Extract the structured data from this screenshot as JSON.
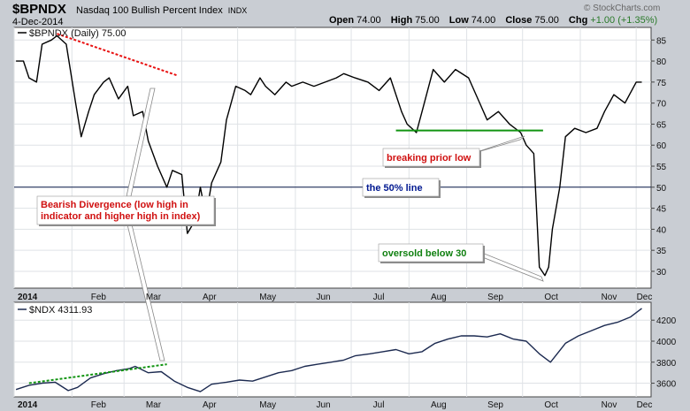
{
  "header": {
    "symbol": "$BPNDX",
    "description": "Nasdaq 100 Bullish Percent Index",
    "exchange": "INDX",
    "date": "4-Dec-2014",
    "brand": "© StockCharts.com",
    "open_label": "Open",
    "open": "74.00",
    "high_label": "High",
    "high": "75.00",
    "low_label": "Low",
    "low": "74.00",
    "close_label": "Close",
    "close": "75.00",
    "chg_label": "Chg",
    "chg": "+1.00 (+1.35%)"
  },
  "chart_data": [
    {
      "type": "line",
      "legend": "$BPNDX (Daily) 75.00",
      "x_ticks": [
        "2014",
        "Feb",
        "Mar",
        "Apr",
        "May",
        "Jun",
        "Jul",
        "Aug",
        "Sep",
        "Oct",
        "Nov",
        "Dec"
      ],
      "y_ticks": [
        30,
        35,
        40,
        45,
        50,
        55,
        60,
        65,
        70,
        75,
        80,
        85
      ],
      "ylim": [
        26,
        88
      ],
      "reference_line": 50,
      "x": [
        "2014-01-02",
        "2014-01-06",
        "2014-01-09",
        "2014-01-13",
        "2014-01-16",
        "2014-01-21",
        "2014-01-24",
        "2014-01-29",
        "2014-02-03",
        "2014-02-06",
        "2014-02-10",
        "2014-02-13",
        "2014-02-18",
        "2014-02-21",
        "2014-02-26",
        "2014-03-03",
        "2014-03-06",
        "2014-03-11",
        "2014-03-14",
        "2014-03-19",
        "2014-03-24",
        "2014-03-27",
        "2014-04-01",
        "2014-04-04",
        "2014-04-08",
        "2014-04-11",
        "2014-04-14",
        "2014-04-17",
        "2014-04-22",
        "2014-04-25",
        "2014-04-30",
        "2014-05-05",
        "2014-05-08",
        "2014-05-13",
        "2014-05-16",
        "2014-05-21",
        "2014-05-27",
        "2014-05-30",
        "2014-06-05",
        "2014-06-11",
        "2014-06-17",
        "2014-06-23",
        "2014-06-27",
        "2014-07-03",
        "2014-07-10",
        "2014-07-16",
        "2014-07-22",
        "2014-07-28",
        "2014-07-31",
        "2014-08-05",
        "2014-08-08",
        "2014-08-14",
        "2014-08-20",
        "2014-08-26",
        "2014-09-02",
        "2014-09-08",
        "2014-09-12",
        "2014-09-18",
        "2014-09-24",
        "2014-09-30",
        "2014-10-03",
        "2014-10-07",
        "2014-10-10",
        "2014-10-13",
        "2014-10-15",
        "2014-10-17",
        "2014-10-21",
        "2014-10-24",
        "2014-10-29",
        "2014-11-04",
        "2014-11-10",
        "2014-11-14",
        "2014-11-19",
        "2014-11-25",
        "2014-12-01",
        "2014-12-04"
      ],
      "values": [
        80,
        80,
        76,
        75,
        84,
        85,
        86,
        84,
        70,
        62,
        68,
        72,
        75,
        76,
        71,
        74,
        67,
        68,
        61,
        55,
        50,
        54,
        53,
        39,
        42,
        50,
        43,
        51,
        56,
        66,
        74,
        73,
        72,
        76,
        74,
        72,
        75,
        74,
        75,
        74,
        75,
        76,
        77,
        76,
        75,
        73,
        76,
        68,
        65,
        63,
        68,
        78,
        75,
        78,
        76,
        70,
        66,
        68,
        65,
        63,
        60,
        58,
        31,
        29,
        31,
        40,
        50,
        62,
        64,
        63,
        64,
        68,
        72,
        70,
        75,
        75
      ]
    },
    {
      "type": "line",
      "legend": "$NDX 4311.93",
      "x_ticks": [
        "2014",
        "Feb",
        "Mar",
        "Apr",
        "May",
        "Jun",
        "Jul",
        "Aug",
        "Sep",
        "Oct",
        "Nov",
        "Dec"
      ],
      "y_ticks": [
        3600,
        3800,
        4000,
        4200
      ],
      "ylim": [
        3470,
        4370
      ],
      "x": [
        "2014-01-02",
        "2014-01-09",
        "2014-01-16",
        "2014-01-23",
        "2014-01-30",
        "2014-02-04",
        "2014-02-11",
        "2014-02-18",
        "2014-02-25",
        "2014-03-04",
        "2014-03-07",
        "2014-03-14",
        "2014-03-21",
        "2014-03-28",
        "2014-04-04",
        "2014-04-11",
        "2014-04-17",
        "2014-04-25",
        "2014-05-02",
        "2014-05-09",
        "2014-05-16",
        "2014-05-23",
        "2014-05-30",
        "2014-06-06",
        "2014-06-13",
        "2014-06-20",
        "2014-06-27",
        "2014-07-03",
        "2014-07-11",
        "2014-07-18",
        "2014-07-25",
        "2014-08-01",
        "2014-08-08",
        "2014-08-15",
        "2014-08-22",
        "2014-08-29",
        "2014-09-05",
        "2014-09-12",
        "2014-09-19",
        "2014-09-26",
        "2014-10-03",
        "2014-10-10",
        "2014-10-16",
        "2014-10-24",
        "2014-10-31",
        "2014-11-07",
        "2014-11-14",
        "2014-11-21",
        "2014-11-28",
        "2014-12-04"
      ],
      "values": [
        3540,
        3580,
        3600,
        3610,
        3530,
        3560,
        3650,
        3690,
        3720,
        3740,
        3760,
        3700,
        3710,
        3620,
        3560,
        3520,
        3590,
        3610,
        3630,
        3620,
        3660,
        3700,
        3720,
        3760,
        3780,
        3800,
        3820,
        3860,
        3880,
        3900,
        3920,
        3880,
        3900,
        3980,
        4020,
        4050,
        4050,
        4040,
        4070,
        4020,
        4000,
        3880,
        3800,
        3980,
        4050,
        4100,
        4150,
        4180,
        4230,
        4312
      ]
    }
  ],
  "annotations": {
    "breaking": "breaking prior low",
    "fifty": "the 50% line",
    "bearish": "Bearish Divergence (low high in indicator and higher high in index)",
    "oversold": "oversold below 30"
  },
  "colors": {
    "background": "#c9cdd3",
    "panel": "#ffffff",
    "bpndx_line": "#000000",
    "ndx_line": "#1c2a50",
    "red_dash": "#e81010",
    "green": "#119411",
    "annotation_red": "#d01010",
    "annotation_blue": "#001890",
    "annotation_green": "#108010"
  }
}
